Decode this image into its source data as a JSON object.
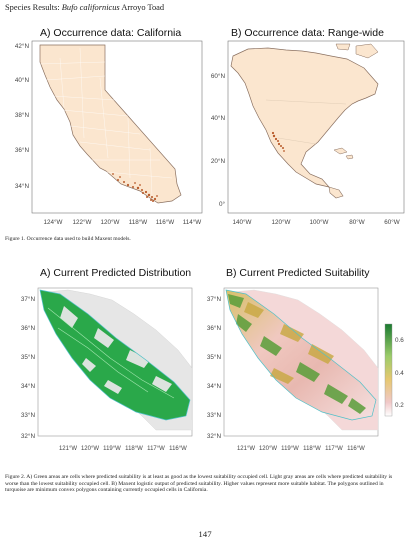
{
  "header": {
    "prefix": "Species Results: ",
    "species": "Bufo californicus",
    "common_name": " Arroyo Toad"
  },
  "figure1": {
    "panel_a": {
      "title": "A) Occurrence data: California",
      "y_ticks": [
        "42°N",
        "40°N",
        "38°N",
        "36°N",
        "34°N"
      ],
      "x_ticks": [
        "124°W",
        "122°W",
        "120°W",
        "118°W",
        "116°W",
        "114°W"
      ]
    },
    "panel_b": {
      "title": "B) Occurrence data: Range-wide",
      "y_ticks": [
        "60°N",
        "40°N",
        "20°N",
        "0°"
      ],
      "x_ticks": [
        "140°W",
        "120°W",
        "100°W",
        "80°W",
        "60°W"
      ]
    },
    "caption": "Figure 1. Occurrence data used to build Maxent models."
  },
  "figure2": {
    "panel_a": {
      "title": "A) Current Predicted Distribution",
      "y_ticks": [
        "37°N",
        "36°N",
        "35°N",
        "34°N",
        "33°N",
        "32°N"
      ],
      "x_ticks": [
        "121°W",
        "120°W",
        "119°W",
        "118°W",
        "117°W",
        "116°W"
      ]
    },
    "panel_b": {
      "title": "B) Current Predicted Suitability",
      "y_ticks": [
        "37°N",
        "36°N",
        "35°N",
        "34°N",
        "33°N",
        "32°N"
      ],
      "x_ticks": [
        "121°W",
        "120°W",
        "119°W",
        "118°W",
        "117°W",
        "116°W"
      ]
    },
    "legend_ticks": [
      "0.6",
      "0.4",
      "0.2"
    ],
    "caption": "Figure 2. A) Green areas are cells where predicted suitability is at least as good as the lowest suitability occupied cell. Light gray areas are cells where predicted suitability is worse than the lowest suitability occupied cell. B) Maxent logistic output of predicted suitability. Higher values represent more suitable habitat. The polygons outlined in turquoise are minimum convex polygons containing currently occupied cells in California."
  },
  "page_number": "147",
  "colors": {
    "land": "#fbe6cf",
    "outline": "#8a7060",
    "occurrence": "#b85a2a",
    "predicted_green": "#2aa84a",
    "absent_gray": "#e6e6e6",
    "high_suitability": "#1a7a30"
  }
}
